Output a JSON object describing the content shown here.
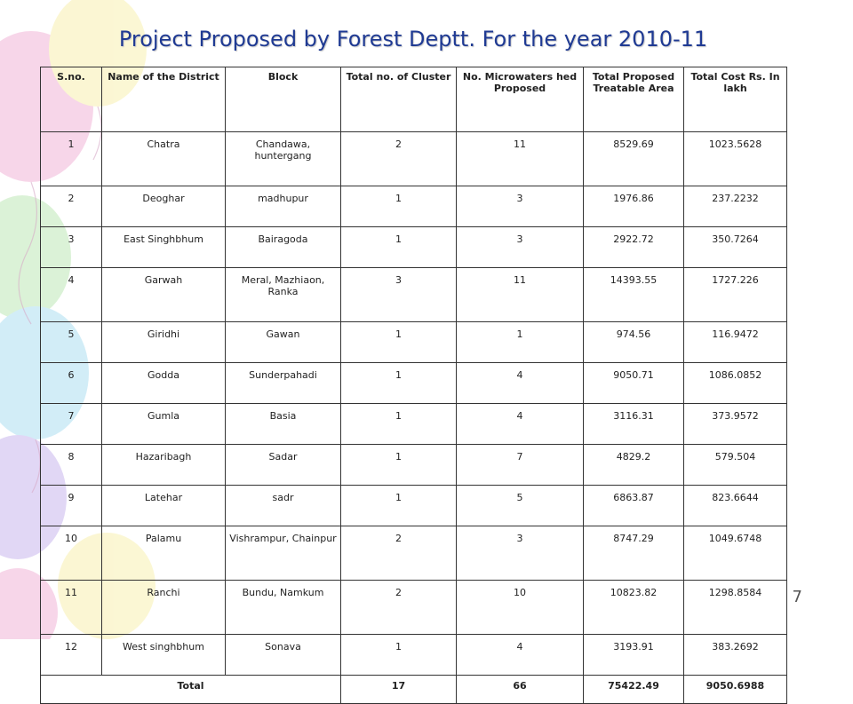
{
  "slide": {
    "title": "Project Proposed by Forest Deptt. For the year 2010-11",
    "page_number": "7",
    "colors": {
      "title": "#1f3a93",
      "border": "#333333",
      "balloon_pink": "#f2b6d8",
      "balloon_blue": "#aee0f2",
      "balloon_yellow": "#f8f0b0",
      "balloon_green": "#bfe8b8",
      "balloon_purple": "#c9b7ee"
    }
  },
  "table": {
    "headers": [
      "S.no.",
      "Name of the District",
      "Block",
      "Total no. of Cluster",
      "No. Microwaters hed Proposed",
      "Total Proposed Treatable Area",
      "Total Cost Rs. In lakh"
    ],
    "rows": [
      [
        "1",
        "Chatra",
        "Chandawa, huntergang",
        "2",
        "11",
        "8529.69",
        "1023.5628"
      ],
      [
        "2",
        "Deoghar",
        "madhupur",
        "1",
        "3",
        "1976.86",
        "237.2232"
      ],
      [
        "3",
        "East Singhbhum",
        "Bairagoda",
        "1",
        "3",
        "2922.72",
        "350.7264"
      ],
      [
        "4",
        "Garwah",
        "Meral, Mazhiaon, Ranka",
        "3",
        "11",
        "14393.55",
        "1727.226"
      ],
      [
        "5",
        "Giridhi",
        "Gawan",
        "1",
        "1",
        "974.56",
        "116.9472"
      ],
      [
        "6",
        "Godda",
        "Sunderpahadi",
        "1",
        "4",
        "9050.71",
        "1086.0852"
      ],
      [
        "7",
        "Gumla",
        "Basia",
        "1",
        "4",
        "3116.31",
        "373.9572"
      ],
      [
        "8",
        "Hazaribagh",
        "Sadar",
        "1",
        "7",
        "4829.2",
        "579.504"
      ],
      [
        "9",
        "Latehar",
        "sadr",
        "1",
        "5",
        "6863.87",
        "823.6644"
      ],
      [
        "10",
        "Palamu",
        "Vishrampur, Chainpur",
        "2",
        "3",
        "8747.29",
        "1049.6748"
      ],
      [
        "11",
        "Ranchi",
        "Bundu, Namkum",
        "2",
        "10",
        "10823.82",
        "1298.8584"
      ],
      [
        "12",
        "West singhbhum",
        "Sonava",
        "1",
        "4",
        "3193.91",
        "383.2692"
      ]
    ],
    "total": {
      "label": "Total",
      "clusters": "17",
      "microwatersheds": "66",
      "area": "75422.49",
      "cost": "9050.6988"
    }
  }
}
